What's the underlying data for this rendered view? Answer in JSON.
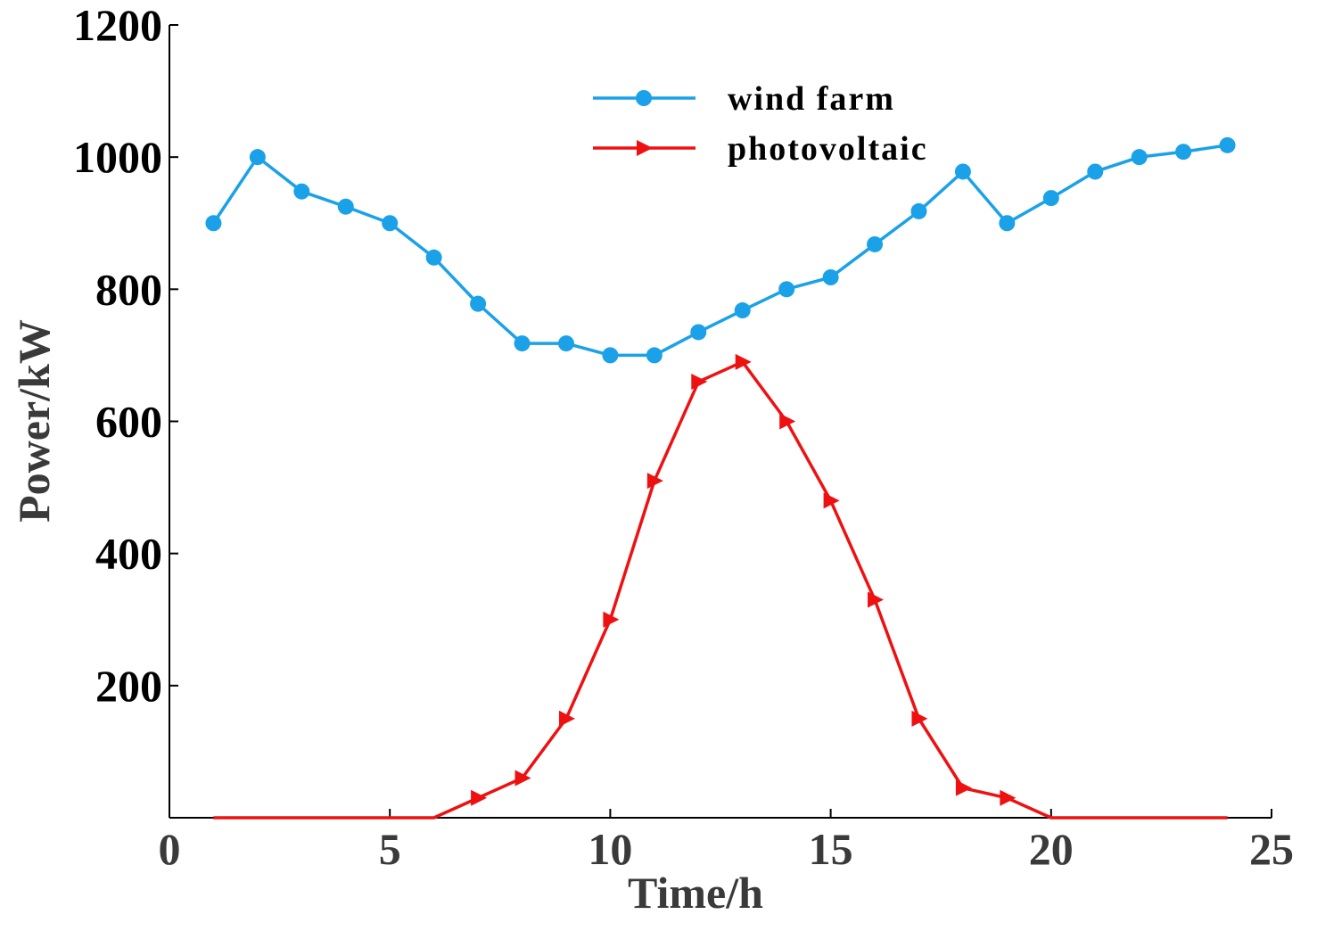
{
  "chart_data": {
    "type": "line",
    "title": "",
    "xlabel": "Time/h",
    "ylabel": "Power/kW",
    "xlim": [
      0,
      25
    ],
    "ylim": [
      0,
      1200
    ],
    "xticks": [
      0,
      5,
      10,
      15,
      20,
      25
    ],
    "yticks": [
      200,
      400,
      600,
      800,
      1000,
      1200
    ],
    "grid": false,
    "legend_position": "top-center",
    "x": [
      1,
      2,
      3,
      4,
      5,
      6,
      7,
      8,
      9,
      10,
      11,
      12,
      13,
      14,
      15,
      16,
      17,
      18,
      19,
      20,
      21,
      22,
      23,
      24
    ],
    "series": [
      {
        "name": "wind farm",
        "color": "#1ba1e8",
        "marker": "circle",
        "values": [
          900,
          1000,
          948,
          925,
          900,
          848,
          778,
          718,
          718,
          700,
          700,
          735,
          768,
          800,
          818,
          868,
          918,
          978,
          900,
          938,
          978,
          1000,
          1008,
          1018
        ]
      },
      {
        "name": "photovoltaic",
        "color": "#ee1111",
        "marker": "triangle-right",
        "values": [
          0,
          0,
          0,
          0,
          0,
          0,
          30,
          60,
          150,
          300,
          510,
          660,
          690,
          600,
          480,
          330,
          150,
          45,
          30,
          0,
          0,
          0,
          0,
          0
        ]
      }
    ]
  }
}
